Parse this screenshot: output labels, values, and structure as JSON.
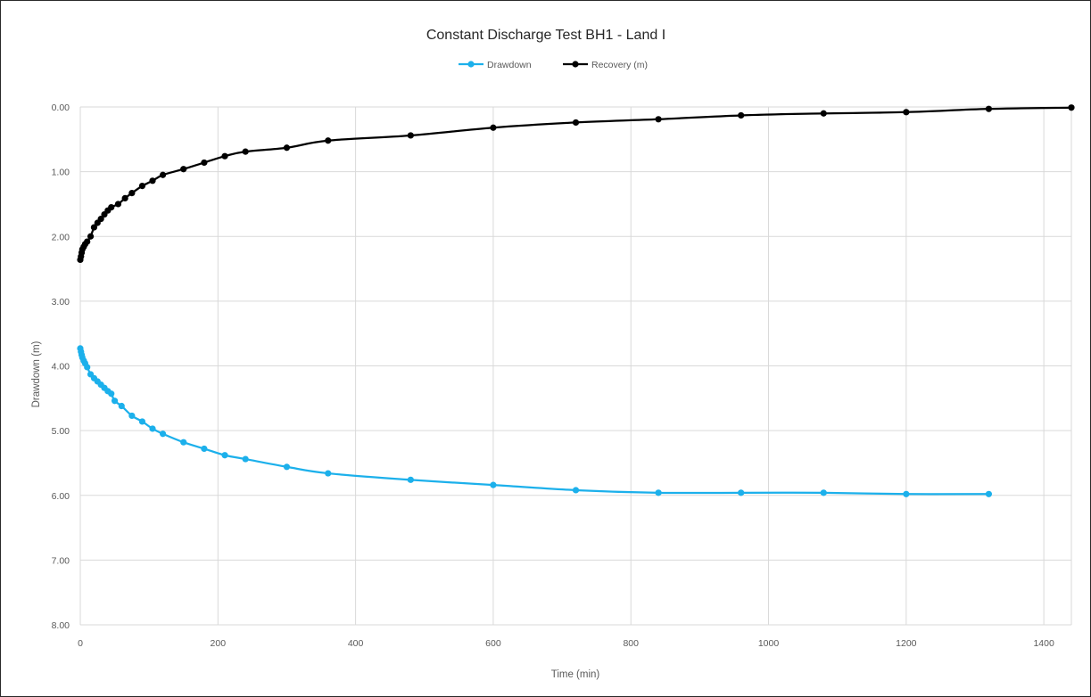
{
  "chart_data": {
    "type": "line",
    "title": "Constant Discharge Test BH1 - Land I",
    "xlabel": "Time (min)",
    "ylabel": "Drawdown (m)",
    "xlim": [
      0,
      1440
    ],
    "ylim": [
      0,
      8
    ],
    "y_inverted": true,
    "x_ticks": [
      "0",
      "200",
      "400",
      "600",
      "800",
      "1000",
      "1200",
      "1400"
    ],
    "y_ticks": [
      "0.00",
      "1.00",
      "2.00",
      "3.00",
      "4.00",
      "5.00",
      "6.00",
      "7.00",
      "8.00"
    ],
    "grid": true,
    "legend_position": "top",
    "series": [
      {
        "name": "Drawdown",
        "color": "#1cb0eb",
        "points": [
          [
            0,
            3.73
          ],
          [
            1,
            3.78
          ],
          [
            2,
            3.83
          ],
          [
            3,
            3.87
          ],
          [
            5,
            3.92
          ],
          [
            7,
            3.96
          ],
          [
            10,
            4.02
          ],
          [
            15,
            4.13
          ],
          [
            20,
            4.19
          ],
          [
            25,
            4.24
          ],
          [
            30,
            4.29
          ],
          [
            35,
            4.34
          ],
          [
            40,
            4.39
          ],
          [
            45,
            4.43
          ],
          [
            50,
            4.54
          ],
          [
            60,
            4.62
          ],
          [
            75,
            4.77
          ],
          [
            90,
            4.86
          ],
          [
            105,
            4.97
          ],
          [
            120,
            5.05
          ],
          [
            150,
            5.18
          ],
          [
            180,
            5.28
          ],
          [
            210,
            5.38
          ],
          [
            240,
            5.44
          ],
          [
            300,
            5.56
          ],
          [
            360,
            5.66
          ],
          [
            480,
            5.76
          ],
          [
            600,
            5.84
          ],
          [
            720,
            5.92
          ],
          [
            840,
            5.96
          ],
          [
            960,
            5.96
          ],
          [
            1080,
            5.96
          ],
          [
            1200,
            5.98
          ],
          [
            1320,
            5.98
          ]
        ]
      },
      {
        "name": "Recovery (m)",
        "color": "#000000",
        "points": [
          [
            0,
            2.36
          ],
          [
            1,
            2.31
          ],
          [
            2,
            2.25
          ],
          [
            3,
            2.2
          ],
          [
            5,
            2.16
          ],
          [
            7,
            2.12
          ],
          [
            10,
            2.08
          ],
          [
            15,
            2.0
          ],
          [
            20,
            1.86
          ],
          [
            25,
            1.79
          ],
          [
            30,
            1.73
          ],
          [
            35,
            1.66
          ],
          [
            40,
            1.6
          ],
          [
            45,
            1.55
          ],
          [
            55,
            1.5
          ],
          [
            65,
            1.41
          ],
          [
            75,
            1.33
          ],
          [
            90,
            1.22
          ],
          [
            105,
            1.14
          ],
          [
            120,
            1.05
          ],
          [
            150,
            0.96
          ],
          [
            180,
            0.86
          ],
          [
            210,
            0.76
          ],
          [
            240,
            0.69
          ],
          [
            300,
            0.63
          ],
          [
            360,
            0.52
          ],
          [
            480,
            0.44
          ],
          [
            600,
            0.32
          ],
          [
            720,
            0.24
          ],
          [
            840,
            0.19
          ],
          [
            960,
            0.13
          ],
          [
            1080,
            0.1
          ],
          [
            1200,
            0.08
          ],
          [
            1320,
            0.03
          ],
          [
            1440,
            0.01
          ]
        ]
      }
    ]
  }
}
